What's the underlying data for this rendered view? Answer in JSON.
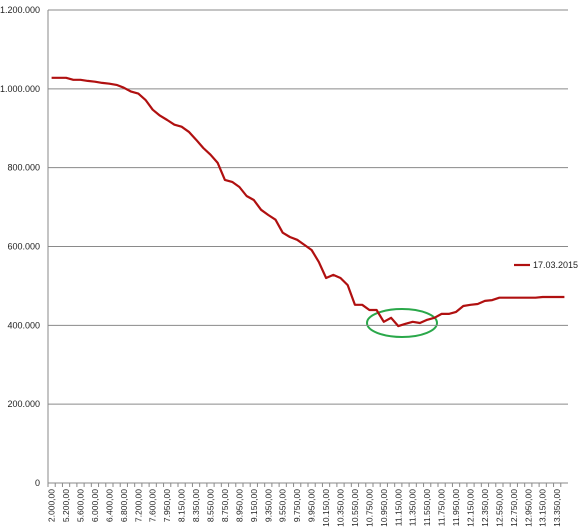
{
  "chart_data": {
    "type": "line",
    "categories": [
      "2.000,00",
      null,
      "5.200,00",
      null,
      "5.600,00",
      null,
      "6.000,00",
      null,
      "6.400,00",
      null,
      "6.800,00",
      null,
      "7.200,00",
      null,
      "7.600,00",
      null,
      "7.950,00",
      null,
      "8.150,00",
      null,
      "8.350,00",
      null,
      "8.550,00",
      null,
      "8.750,00",
      null,
      "8.950,00",
      null,
      "9.150,00",
      null,
      "9.350,00",
      null,
      "9.550,00",
      null,
      "9.750,00",
      null,
      "9.950,00",
      null,
      "10.150,00",
      null,
      "10.350,00",
      null,
      "10.550,00",
      null,
      "10.750,00",
      null,
      "10.950,00",
      null,
      "11.150,00",
      null,
      "11.350,00",
      null,
      "11.550,00",
      null,
      "11.750,00",
      null,
      "11.950,00",
      null,
      "12.150,00",
      null,
      "12.350,00",
      null,
      "12.550,00",
      null,
      "12.750,00",
      null,
      "12.950,00",
      null,
      "13.150,00",
      null,
      "13.350,00",
      null
    ],
    "series": [
      {
        "name": "17.03.2015",
        "color": "#b01010",
        "values": [
          1028000,
          1028000,
          1028000,
          1023000,
          1023000,
          1020000,
          1018000,
          1015000,
          1013000,
          1010000,
          1003000,
          993000,
          988000,
          972000,
          947000,
          932000,
          921000,
          909000,
          904000,
          891000,
          871000,
          850000,
          833000,
          812000,
          769000,
          764000,
          751000,
          728000,
          718000,
          693000,
          680000,
          668000,
          635000,
          624000,
          617000,
          604000,
          591000,
          561000,
          520000,
          528000,
          520000,
          502000,
          452000,
          452000,
          439000,
          439000,
          409000,
          419000,
          398000,
          404000,
          409000,
          406000,
          414000,
          419000,
          429000,
          429000,
          434000,
          449000,
          452000,
          454000,
          462000,
          464000,
          470000,
          470000,
          470000,
          470000,
          470000,
          470000,
          472000,
          472000,
          472000,
          472000
        ]
      }
    ],
    "ylim": [
      0,
      1200000
    ],
    "yticks": [
      0,
      {
        "value": 200000,
        "label": "200.000"
      },
      {
        "value": 400000,
        "label": "400.000"
      },
      {
        "value": 600000,
        "label": "600.000"
      },
      {
        "value": 800000,
        "label": "800.000"
      },
      {
        "value": 1000000,
        "label": "1.000.000"
      },
      {
        "value": 1200000,
        "label": "1.200.000"
      }
    ],
    "grid": true,
    "legend": "right"
  }
}
